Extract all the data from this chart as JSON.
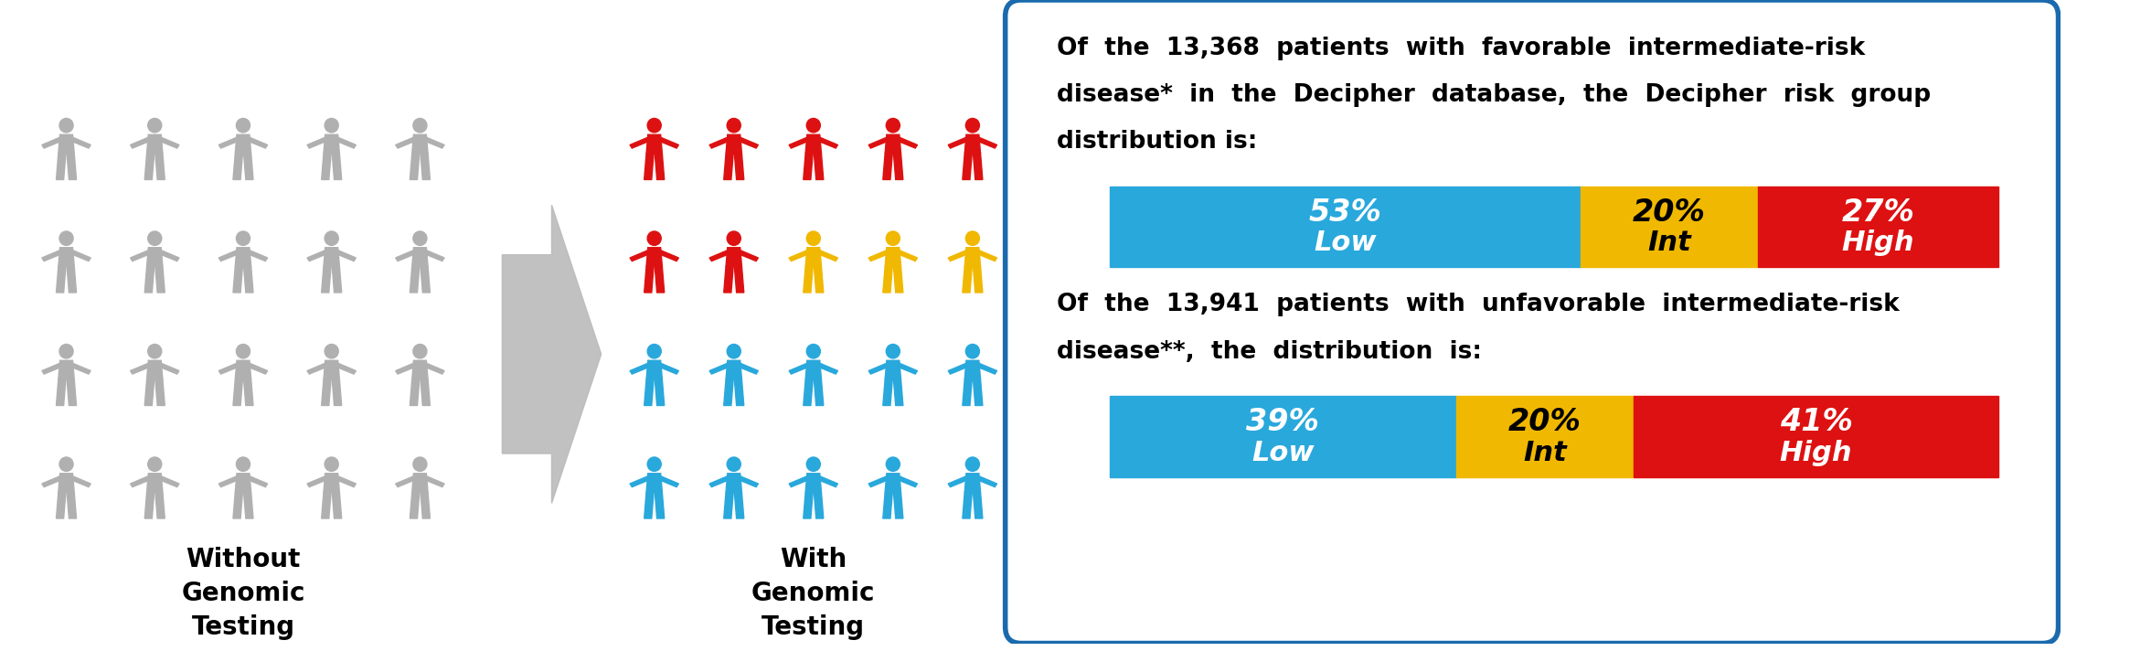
{
  "fig_width": 23.3,
  "fig_height": 7.12,
  "background_color": "#ffffff",
  "box_border_color": "#1a6aad",
  "box_bg_color": "#ffffff",
  "arrow_color": "#bbbbbb",
  "label_without": "Without\nGenomic\nTesting",
  "label_with": "With\nGenomic\nTesting",
  "figure_colors": {
    "gray": "#b0b0b0",
    "red": "#dd1111",
    "yellow": "#f0b800",
    "blue": "#29a8dc"
  },
  "gray_grid_cols": 5,
  "gray_grid_rows": 4,
  "colored_rows": [
    {
      "colors": [
        "red",
        "red",
        "red",
        "red",
        "red"
      ]
    },
    {
      "colors": [
        "red",
        "red",
        "yellow",
        "yellow",
        "yellow"
      ]
    },
    {
      "colors": [
        "blue",
        "blue",
        "blue",
        "blue",
        "blue"
      ]
    },
    {
      "colors": [
        "blue",
        "blue",
        "blue",
        "blue",
        "blue"
      ]
    }
  ],
  "bar1_values": [
    53,
    20,
    27
  ],
  "bar1_labels_top": [
    "53%",
    "20%",
    "27%"
  ],
  "bar1_labels_bot": [
    "Low",
    "Int",
    "High"
  ],
  "bar1_colors": [
    "#29a8dc",
    "#f0b800",
    "#dd1111"
  ],
  "bar1_text_colors": [
    "#ffffff",
    "#000000",
    "#ffffff"
  ],
  "bar2_values": [
    39,
    20,
    41
  ],
  "bar2_labels_top": [
    "39%",
    "20%",
    "41%"
  ],
  "bar2_labels_bot": [
    "Low",
    "Int",
    "High"
  ],
  "bar2_colors": [
    "#29a8dc",
    "#f0b800",
    "#dd1111"
  ],
  "bar2_text_colors": [
    "#ffffff",
    "#000000",
    "#ffffff"
  ],
  "text1_lines": [
    "Of  the  13,368  patients  with  favorable  intermediate-risk",
    "disease*  in  the  Decipher  database,  the  Decipher  risk  group",
    "distribution is:"
  ],
  "text2_lines": [
    "Of  the  13,941  patients  with  unfavorable  intermediate-risk",
    "disease**,  the  distribution  is:"
  ],
  "font_size_text": 19,
  "font_size_bar_pct": 24,
  "font_size_bar_lbl": 22,
  "font_size_caption": 20
}
